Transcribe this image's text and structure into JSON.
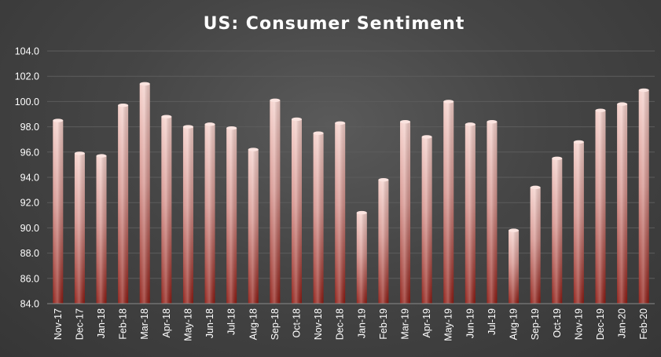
{
  "chart_data": {
    "type": "bar",
    "title": "US: Consumer Sentiment",
    "xlabel": "",
    "ylabel": "",
    "ylim": [
      84.0,
      104.0
    ],
    "yticks": [
      "84.0",
      "86.0",
      "88.0",
      "90.0",
      "92.0",
      "94.0",
      "96.0",
      "98.0",
      "100.0",
      "102.0",
      "104.0"
    ],
    "grid": true,
    "legend": "none",
    "categories": [
      "Nov-17",
      "Dec-17",
      "Jan-18",
      "Feb-18",
      "Mar-18",
      "Apr-18",
      "May-18",
      "Jun-18",
      "Jul-18",
      "Aug-18",
      "Sep-18",
      "Oct-18",
      "Nov-18",
      "Dec-18",
      "Jan-19",
      "Feb-19",
      "Mar-19",
      "Apr-19",
      "May-19",
      "Jun-19",
      "Jul-19",
      "Aug-19",
      "Sep-19",
      "Oct-19",
      "Nov-19",
      "Dec-19",
      "Jan-20",
      "Feb-20"
    ],
    "values": [
      98.5,
      95.9,
      95.7,
      99.7,
      101.4,
      98.8,
      98.0,
      98.2,
      97.9,
      96.2,
      100.1,
      98.6,
      97.5,
      98.3,
      91.2,
      93.8,
      98.4,
      97.2,
      100.0,
      98.2,
      98.4,
      89.8,
      93.2,
      95.5,
      96.8,
      99.3,
      99.8,
      100.9
    ],
    "colors": {
      "bar_top": "#f4cfc9",
      "bar_bottom": "#8e1a12",
      "text": "#ffffff",
      "grid": "#5c5c5c",
      "background": "#454545"
    }
  }
}
